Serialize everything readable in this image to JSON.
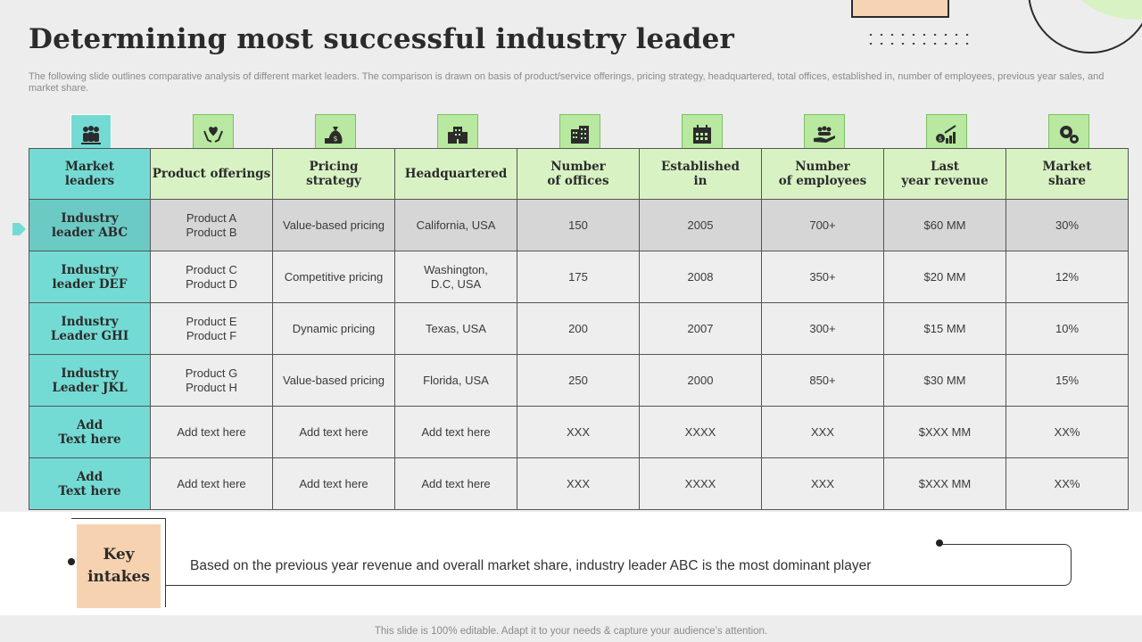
{
  "slide": {
    "title": "Determining most successful industry leader",
    "subtitle": "The following slide outlines comparative analysis of different market leaders. The comparison is drawn on basis of product/service offerings, pricing strategy, headquartered, total offices, established in, number of employees, previous year sales, and market share."
  },
  "table": {
    "headers": [
      {
        "label": "Market\nleaders",
        "icon": "team-icon"
      },
      {
        "label": "Product offerings",
        "icon": "hands-offering-icon"
      },
      {
        "label": "Pricing\nstrategy",
        "icon": "money-bag-icon"
      },
      {
        "label": "Headquartered",
        "icon": "headquarters-building-icon"
      },
      {
        "label": "Number\nof offices",
        "icon": "office-building-icon"
      },
      {
        "label": "Established\nin",
        "icon": "calendar-icon"
      },
      {
        "label": "Number\nof employees",
        "icon": "hand-people-icon"
      },
      {
        "label": "Last\nyear revenue",
        "icon": "revenue-chart-icon"
      },
      {
        "label": "Market\nshare",
        "icon": "gears-icon"
      }
    ],
    "rows": [
      {
        "leader": "Industry\nleader ABC",
        "cells": [
          "Product A\nProduct B",
          "Value-based  pricing",
          "California,  USA",
          "150",
          "2005",
          "700+",
          "$60  MM",
          "30%"
        ]
      },
      {
        "leader": "Industry\nleader DEF",
        "cells": [
          "Product C\nProduct D",
          "Competitive  pricing",
          "Washington,\nD.C, USA",
          "175",
          "2008",
          "350+",
          "$20  MM",
          "12%"
        ]
      },
      {
        "leader": "Industry\nLeader GHI",
        "cells": [
          "Product E\nProduct F",
          "Dynamic  pricing",
          "Texas,  USA",
          "200",
          "2007",
          "300+",
          "$15  MM",
          "10%"
        ]
      },
      {
        "leader": "Industry\nLeader JKL",
        "cells": [
          "Product G\nProduct H",
          "Value-based  pricing",
          "Florida,  USA",
          "250",
          "2000",
          "850+",
          "$30  MM",
          "15%"
        ]
      },
      {
        "leader": "Add\nText here",
        "cells": [
          "Add text here",
          "Add text here",
          "Add text here",
          "XXX",
          "XXXX",
          "XXX",
          "$XXX  MM",
          "XX%"
        ]
      },
      {
        "leader": "Add\nText here",
        "cells": [
          "Add text here",
          "Add text here",
          "Add text here",
          "XXX",
          "XXXX",
          "XXX",
          "$XXX  MM",
          "XX%"
        ]
      }
    ]
  },
  "key_intakes": {
    "label": "Key\nintakes",
    "text": "Based on the previous year revenue  and overall market share,  industry  leader ABC is the most dominant player"
  },
  "footer": "This slide is 100% editable. Adapt it to your needs & capture your audience’s attention.",
  "colors": {
    "teal": "#74dbd4",
    "light_green": "#d9f2c4",
    "icon_green": "#b9e8a0",
    "peach": "#f7d2b0"
  }
}
